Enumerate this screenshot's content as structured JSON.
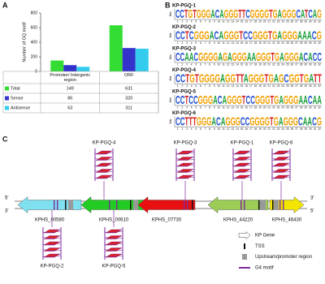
{
  "panel_labels": [
    "A",
    "B",
    "C"
  ],
  "chart_data": {
    "type": "bar",
    "y_label": "Number of GQ motif",
    "categories": [
      "Promoter/ Intergenic region",
      "ORF"
    ],
    "series": [
      {
        "name": "Total",
        "color": "#33dd33",
        "values": [
          149,
          631
        ]
      },
      {
        "name": "Sense",
        "color": "#3333cc",
        "values": [
          86,
          320
        ]
      },
      {
        "name": "Antisense",
        "color": "#33ccee",
        "values": [
          63,
          311
        ]
      }
    ],
    "ylim": [
      0,
      800
    ],
    "yticks": [
      0,
      200,
      400,
      600,
      800
    ]
  },
  "logos": {
    "y_label": "Bits",
    "positions": [
      1,
      2,
      3,
      4,
      5,
      6,
      7,
      8,
      9,
      10,
      11,
      12,
      13,
      14,
      15,
      16,
      17,
      18,
      19,
      20,
      21,
      22,
      23,
      24,
      25,
      26,
      27,
      28,
      29,
      30,
      31,
      32
    ],
    "items": [
      {
        "title": "KP-PGQ-1",
        "sequence": "CCTGTGGGACAGGGTTCGGGGTGAGGGCATCAG"
      },
      {
        "title": "KP-PGQ-2",
        "sequence": "CCTCGGGACAGGGTCCGGGTGAGGGAAACG"
      },
      {
        "title": "KP-PGQ-3",
        "sequence": "CCAACGGGGAGAGGGAAGGGTGAGGGACACC"
      },
      {
        "title": "KP-PGQ-4",
        "sequence": "CCTGTGGGGAGGTTAGGGTGAGCGGTGATT"
      },
      {
        "title": "KP-PGQ-5",
        "sequence": "CCTCCGGGACAGGGTCCGGGTGAGGGAACAA"
      },
      {
        "title": "KP-PGQ-6",
        "sequence": "CCTTTGGGACAGGGCCGGGGTGAGGGCAACG"
      }
    ]
  },
  "diagram": {
    "strand_ends": [
      "5'",
      "3'"
    ],
    "genes": [
      {
        "name": "KPHS_00580",
        "color": "#7fe0f0",
        "direction": "left"
      },
      {
        "name": "KPHS_00610",
        "color": "#22cc22",
        "direction": "left"
      },
      {
        "name": "KPHS_07730",
        "color": "#e81010",
        "direction": "left"
      },
      {
        "name": "KPHS_44220",
        "color": "#9ccc55",
        "direction": "left"
      },
      {
        "name": "KPHS_46430",
        "color": "#f2e600",
        "direction": "right"
      }
    ],
    "g4": [
      "KP-PGQ-1",
      "KP-PGQ-2",
      "KP-PGQ-3",
      "KP-PGQ-4",
      "KP-PGQ-5",
      "KP-PGQ-6"
    ],
    "legend": [
      "KP Gene",
      "TSS",
      "Upstream/promoter region",
      "G4 motif"
    ]
  }
}
